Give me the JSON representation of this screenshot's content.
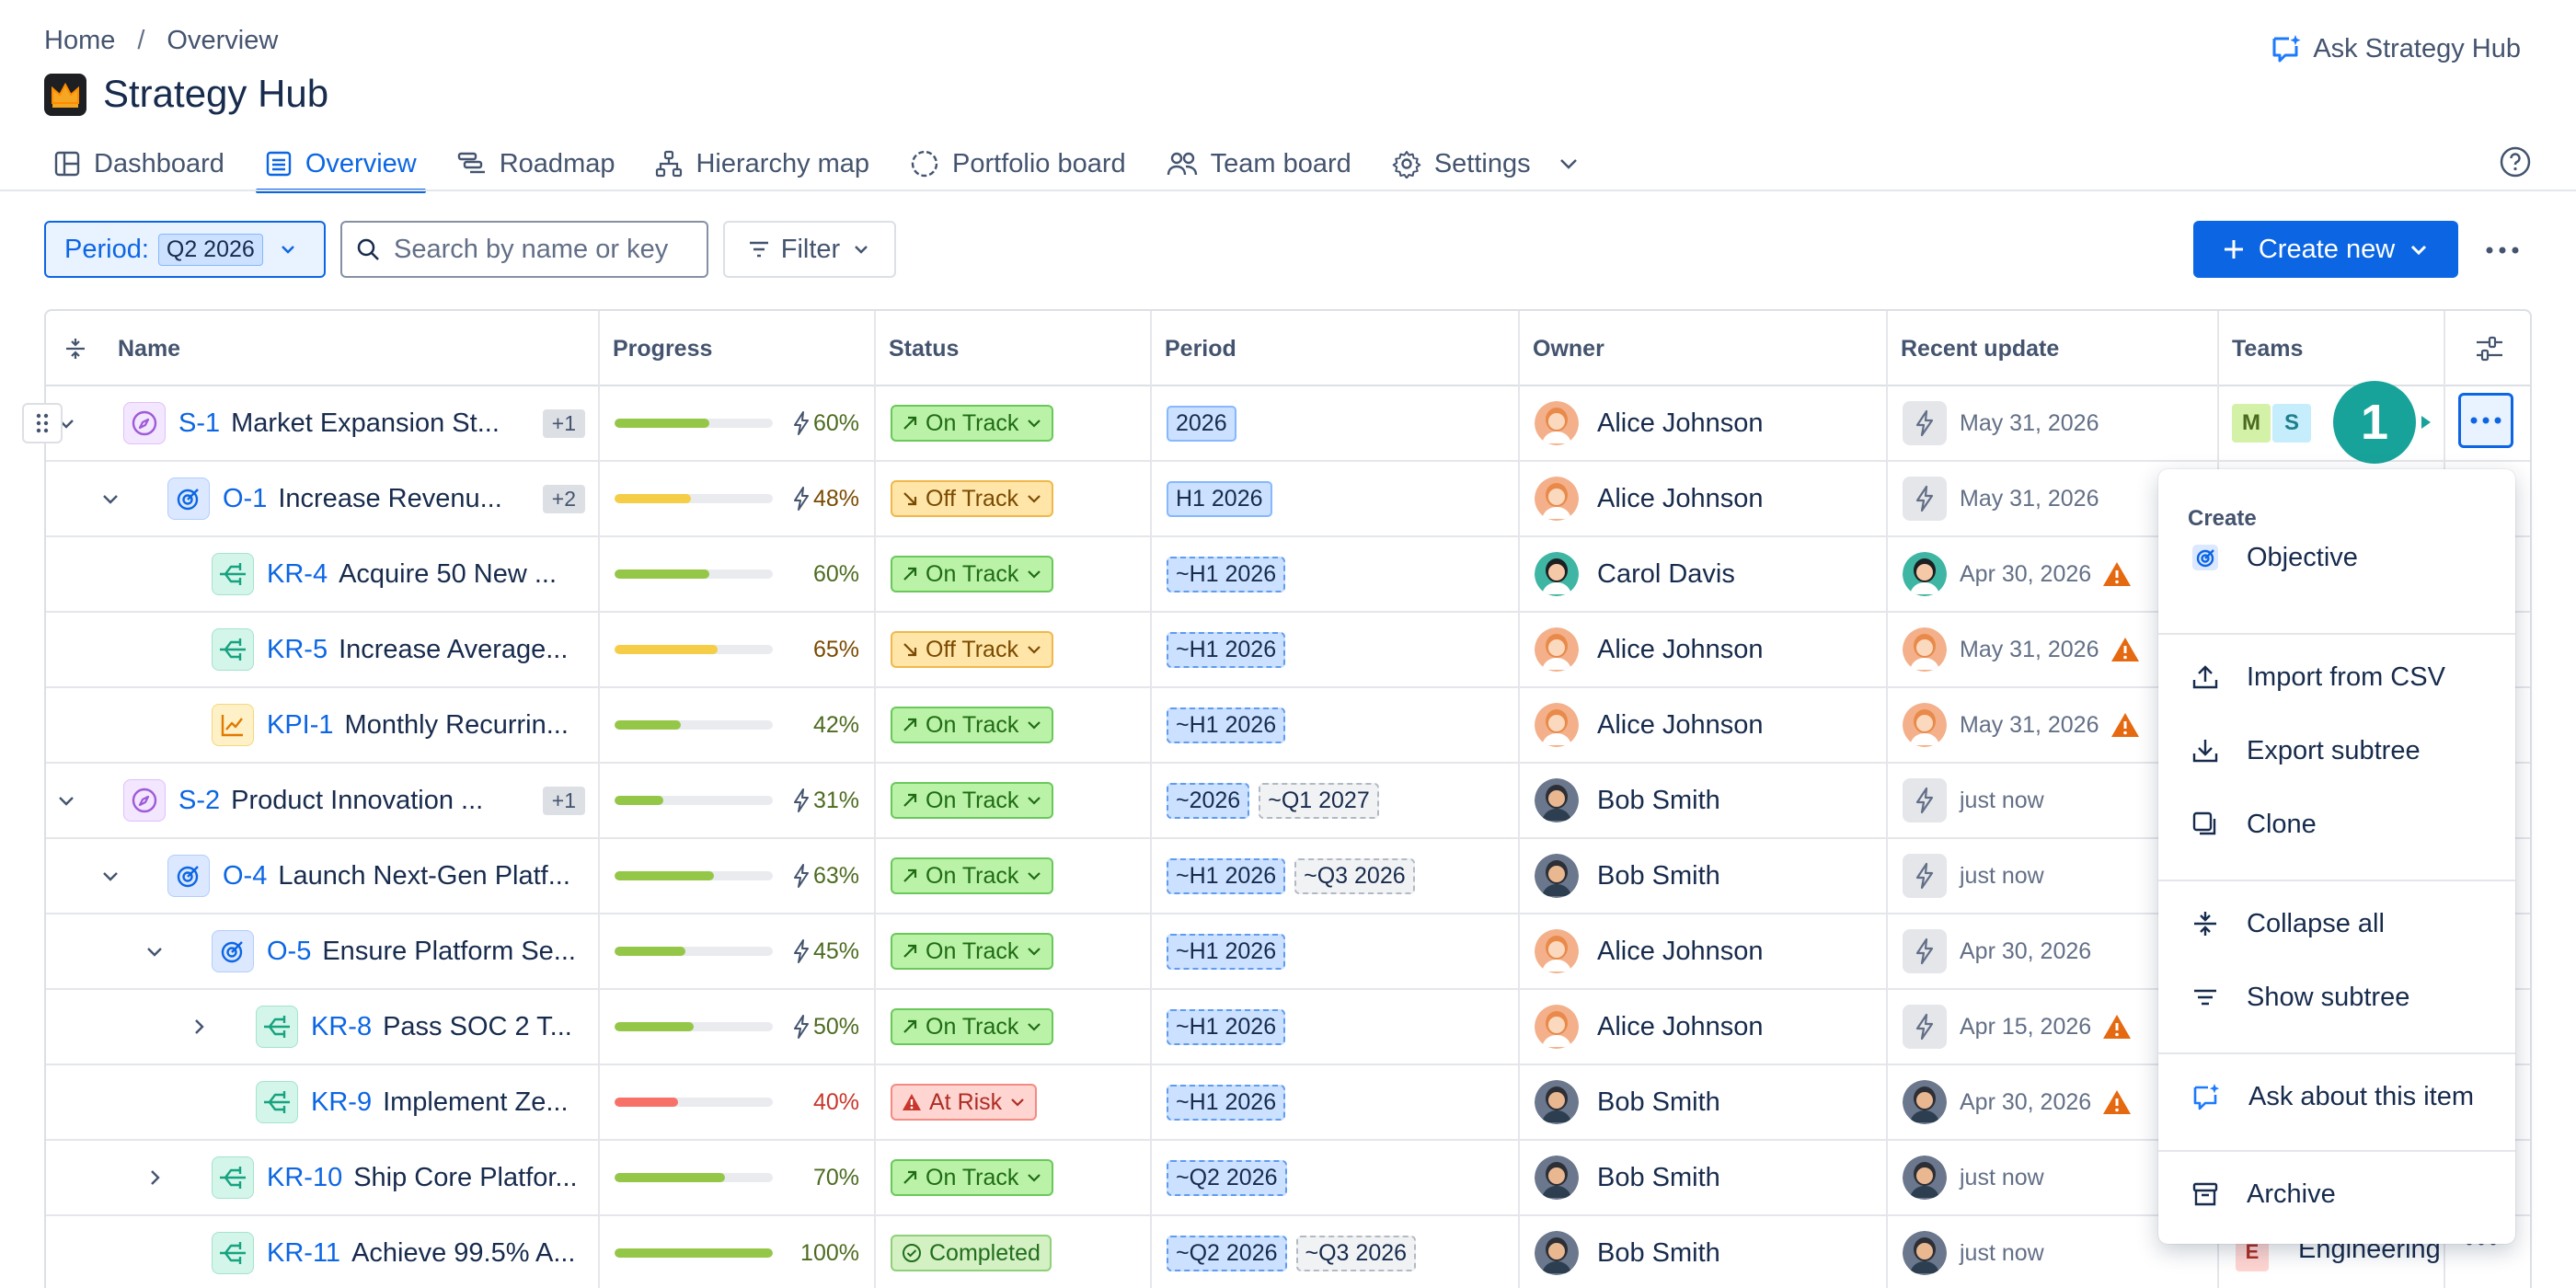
{
  "breadcrumb": {
    "home": "Home",
    "separator": "/",
    "current": "Overview"
  },
  "app": {
    "title": "Strategy Hub",
    "ask_label": "Ask Strategy Hub"
  },
  "tabs": [
    {
      "label": "Dashboard",
      "icon": "dashboard-icon"
    },
    {
      "label": "Overview",
      "icon": "list-icon",
      "active": true
    },
    {
      "label": "Roadmap",
      "icon": "roadmap-icon"
    },
    {
      "label": "Hierarchy map",
      "icon": "hierarchy-icon"
    },
    {
      "label": "Portfolio board",
      "icon": "portfolio-icon"
    },
    {
      "label": "Team board",
      "icon": "team-icon"
    },
    {
      "label": "Settings",
      "icon": "gear-icon"
    }
  ],
  "toolbar": {
    "period_label": "Period:",
    "period_value": "Q2 2026",
    "search_placeholder": "Search by name or key",
    "filter_label": "Filter",
    "create_label": "Create new"
  },
  "columns": [
    "Name",
    "Progress",
    "Status",
    "Period",
    "Owner",
    "Recent update",
    "Teams"
  ],
  "rows": [
    {
      "key": "S-1",
      "name": "Market Expansion St...",
      "badge": "+1",
      "type": "strategy",
      "depth": 0,
      "chev": "down",
      "progress": 60,
      "bolt": true,
      "progress_text": "60%",
      "status": "On Track",
      "status_kind": "on",
      "periods": [
        {
          "t": "2026",
          "s": "solid"
        }
      ],
      "owner": "Alice Johnson",
      "owner_av": "alice",
      "update_kind": "bolt",
      "update": "May 31, 2026",
      "warn": false,
      "teams": [
        "M",
        "S"
      ]
    },
    {
      "key": "O-1",
      "name": "Increase Revenu...",
      "badge": "+2",
      "type": "objective",
      "depth": 1,
      "chev": "down",
      "progress": 48,
      "bolt": true,
      "progress_text": "48%",
      "status": "Off Track",
      "status_kind": "off",
      "periods": [
        {
          "t": "H1 2026",
          "s": "solid"
        }
      ],
      "owner": "Alice Johnson",
      "owner_av": "alice",
      "update_kind": "bolt",
      "update": "May 31, 2026",
      "warn": false,
      "teams": []
    },
    {
      "key": "KR-4",
      "name": "Acquire 50 New ...",
      "badge": "",
      "type": "kr",
      "depth": 2,
      "chev": "",
      "progress": 60,
      "bolt": false,
      "progress_text": "60%",
      "status": "On Track",
      "status_kind": "on",
      "periods": [
        {
          "t": "~H1 2026",
          "s": "dashed"
        }
      ],
      "owner": "Carol Davis",
      "owner_av": "carol",
      "update_kind": "carol",
      "update": "Apr 30, 2026",
      "warn": true,
      "teams": []
    },
    {
      "key": "KR-5",
      "name": "Increase Average...",
      "badge": "",
      "type": "kr",
      "depth": 2,
      "chev": "",
      "progress": 65,
      "bolt": false,
      "progress_text": "65%",
      "status": "Off Track",
      "status_kind": "off",
      "periods": [
        {
          "t": "~H1 2026",
          "s": "dashed"
        }
      ],
      "owner": "Alice Johnson",
      "owner_av": "alice",
      "update_kind": "alice",
      "update": "May 31, 2026",
      "warn": true,
      "teams": []
    },
    {
      "key": "KPI-1",
      "name": "Monthly Recurrin...",
      "badge": "",
      "type": "kpi",
      "depth": 2,
      "chev": "",
      "progress": 42,
      "bolt": false,
      "progress_text": "42%",
      "status": "On Track",
      "status_kind": "on",
      "periods": [
        {
          "t": "~H1 2026",
          "s": "dashed"
        }
      ],
      "owner": "Alice Johnson",
      "owner_av": "alice",
      "update_kind": "alice",
      "update": "May 31, 2026",
      "warn": true,
      "teams": []
    },
    {
      "key": "S-2",
      "name": "Product Innovation ...",
      "badge": "+1",
      "type": "strategy",
      "depth": 0,
      "chev": "down",
      "progress": 31,
      "bolt": true,
      "progress_text": "31%",
      "status": "On Track",
      "status_kind": "on",
      "periods": [
        {
          "t": "~2026",
          "s": "dashed"
        },
        {
          "t": "~Q1 2027",
          "s": "grey"
        }
      ],
      "owner": "Bob Smith",
      "owner_av": "bob",
      "update_kind": "bolt",
      "update": "just now",
      "warn": false,
      "teams": []
    },
    {
      "key": "O-4",
      "name": "Launch Next-Gen Platf...",
      "badge": "",
      "type": "objective",
      "depth": 1,
      "chev": "down",
      "progress": 63,
      "bolt": true,
      "progress_text": "63%",
      "status": "On Track",
      "status_kind": "on",
      "periods": [
        {
          "t": "~H1 2026",
          "s": "dashed"
        },
        {
          "t": "~Q3 2026",
          "s": "grey"
        }
      ],
      "owner": "Bob Smith",
      "owner_av": "bob",
      "update_kind": "bolt",
      "update": "just now",
      "warn": false,
      "teams": []
    },
    {
      "key": "O-5",
      "name": "Ensure Platform Se...",
      "badge": "",
      "type": "objective",
      "depth": 2,
      "chev": "down",
      "progress": 45,
      "bolt": true,
      "progress_text": "45%",
      "status": "On Track",
      "status_kind": "on",
      "periods": [
        {
          "t": "~H1 2026",
          "s": "dashed"
        }
      ],
      "owner": "Alice Johnson",
      "owner_av": "alice",
      "update_kind": "bolt",
      "update": "Apr 30, 2026",
      "warn": false,
      "teams": []
    },
    {
      "key": "KR-8",
      "name": "Pass SOC 2 T...",
      "badge": "",
      "type": "kr",
      "depth": 3,
      "chev": "right",
      "progress": 50,
      "bolt": true,
      "progress_text": "50%",
      "status": "On Track",
      "status_kind": "on",
      "periods": [
        {
          "t": "~H1 2026",
          "s": "dashed"
        }
      ],
      "owner": "Alice Johnson",
      "owner_av": "alice",
      "update_kind": "bolt",
      "update": "Apr 15, 2026",
      "warn": true,
      "teams": []
    },
    {
      "key": "KR-9",
      "name": "Implement Ze...",
      "badge": "",
      "type": "kr",
      "depth": 3,
      "chev": "",
      "progress": 40,
      "bolt": false,
      "progress_text": "40%",
      "status": "At Risk",
      "status_kind": "risk",
      "periods": [
        {
          "t": "~H1 2026",
          "s": "dashed"
        }
      ],
      "owner": "Bob Smith",
      "owner_av": "bob",
      "update_kind": "bob",
      "update": "Apr 30, 2026",
      "warn": true,
      "teams": []
    },
    {
      "key": "KR-10",
      "name": "Ship Core Platfor...",
      "badge": "",
      "type": "kr",
      "depth": 2,
      "chev": "right",
      "progress": 70,
      "bolt": false,
      "progress_text": "70%",
      "status": "On Track",
      "status_kind": "on",
      "periods": [
        {
          "t": "~Q2 2026",
          "s": "dashed"
        }
      ],
      "owner": "Bob Smith",
      "owner_av": "bob",
      "update_kind": "bob",
      "update": "just now",
      "warn": false,
      "teams": []
    },
    {
      "key": "KR-11",
      "name": "Achieve 99.5% A...",
      "badge": "",
      "type": "kr",
      "depth": 2,
      "chev": "",
      "progress": 100,
      "bolt": false,
      "progress_text": "100%",
      "status": "Completed",
      "status_kind": "done",
      "periods": [
        {
          "t": "~Q2 2026",
          "s": "dashed"
        },
        {
          "t": "~Q3 2026",
          "s": "grey"
        }
      ],
      "owner": "Bob Smith",
      "owner_av": "bob",
      "update_kind": "bob",
      "update": "just now",
      "warn": false,
      "teams": [
        "E"
      ]
    }
  ],
  "bottom_row_team": "Engineering",
  "marker_label": "1",
  "menu": {
    "heading": "Create",
    "items": [
      {
        "label": "Objective",
        "icon": "objective-icon"
      },
      {
        "label": "Import from CSV",
        "icon": "upload-icon"
      },
      {
        "label": "Export subtree",
        "icon": "download-icon"
      },
      {
        "label": "Clone",
        "icon": "clone-icon"
      },
      {
        "label": "Collapse all",
        "icon": "collapse-icon"
      },
      {
        "label": "Show subtree",
        "icon": "subtree-icon"
      },
      {
        "label": "Ask about this item",
        "icon": "ask-ai-icon"
      },
      {
        "label": "Archive",
        "icon": "archive-icon"
      }
    ]
  },
  "colors": {
    "accent": "#0c66e4",
    "on_track": "#baf3a8",
    "off_track": "#ffe5a8",
    "at_risk": "#ffd5d2",
    "progress_green": "#94c748",
    "progress_yellow": "#f5cd47",
    "progress_red": "#f87168"
  }
}
